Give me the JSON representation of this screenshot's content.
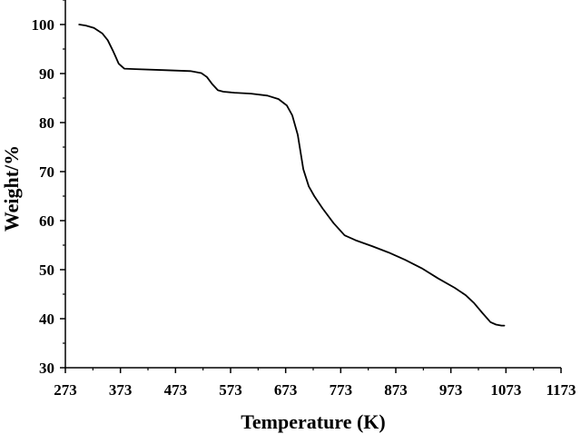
{
  "chart_data": {
    "type": "line",
    "title": "",
    "xlabel": "Temperature (K)",
    "ylabel": "Weight/%",
    "xlim": [
      273,
      1173
    ],
    "ylim": [
      30,
      105
    ],
    "x_ticks": [
      273,
      373,
      473,
      573,
      673,
      773,
      873,
      973,
      1073,
      1173
    ],
    "y_ticks": [
      30,
      40,
      50,
      60,
      70,
      80,
      90,
      100
    ],
    "grid": false,
    "legend": "none",
    "line_color": "#000000",
    "series": [
      {
        "x": [
          298,
          310,
          325,
          340,
          350,
          360,
          370,
          380,
          400,
          450,
          500,
          520,
          530,
          540,
          550,
          560,
          580,
          610,
          640,
          660,
          675,
          685,
          695,
          705,
          715,
          725,
          740,
          760,
          780,
          800,
          830,
          860,
          890,
          920,
          950,
          980,
          1000,
          1015,
          1030,
          1045,
          1055,
          1065,
          1070
        ],
        "y": [
          100,
          99.8,
          99.3,
          98.2,
          96.8,
          94.5,
          92.0,
          91.0,
          90.9,
          90.7,
          90.5,
          90.1,
          89.3,
          87.8,
          86.6,
          86.3,
          86.1,
          85.9,
          85.5,
          84.8,
          83.5,
          81.5,
          77.5,
          70.5,
          67.0,
          65.0,
          62.5,
          59.5,
          57.0,
          56.0,
          54.8,
          53.5,
          52.0,
          50.3,
          48.2,
          46.3,
          44.8,
          43.2,
          41.2,
          39.3,
          38.8,
          38.6,
          38.6
        ]
      }
    ]
  }
}
